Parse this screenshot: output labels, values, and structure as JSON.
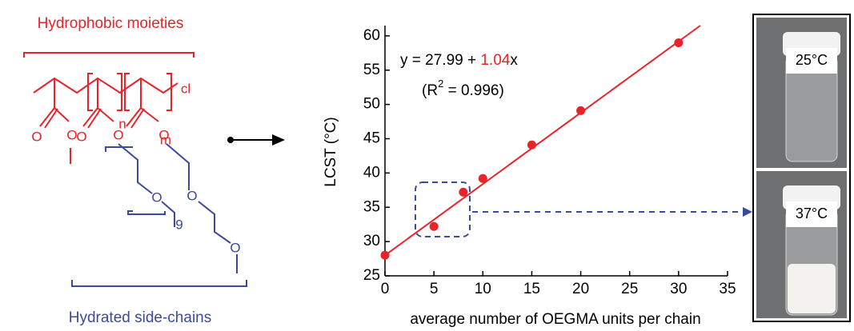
{
  "chart_data": {
    "type": "scatter",
    "x_label": "average number of OEGMA units per chain",
    "y_label": "LCST (°C)",
    "x": [
      0,
      5,
      8,
      10,
      15,
      20,
      30
    ],
    "values": [
      28,
      32.2,
      37.2,
      39.2,
      44.1,
      49.1,
      59
    ],
    "color": "#e8232a",
    "xlim": [
      0,
      35
    ],
    "xticks": [
      0,
      5,
      10,
      15,
      20,
      25,
      30,
      35
    ],
    "ylim": [
      25,
      61.5
    ],
    "yticks": [
      25,
      30,
      35,
      40,
      45,
      50,
      55,
      60
    ],
    "fit": {
      "intercept": 27.99,
      "slope": 1.04,
      "color": "#e8232a"
    },
    "equation_parts": [
      "y = ",
      " + ",
      "x"
    ],
    "r2_parts": [
      "(R",
      "2",
      " = 0.996)"
    ]
  },
  "diagram": {
    "top_label": "Hydrophobic moieties",
    "bottom_label": "Hydrated side-chains",
    "atoms": [
      "O",
      "O",
      "O",
      "O",
      "O",
      "O",
      "O",
      "O"
    ],
    "subscripts": [
      "n",
      "m",
      "9"
    ],
    "end_group": "cl"
  },
  "photos": {
    "labels": [
      "25°C",
      "37°C"
    ]
  }
}
